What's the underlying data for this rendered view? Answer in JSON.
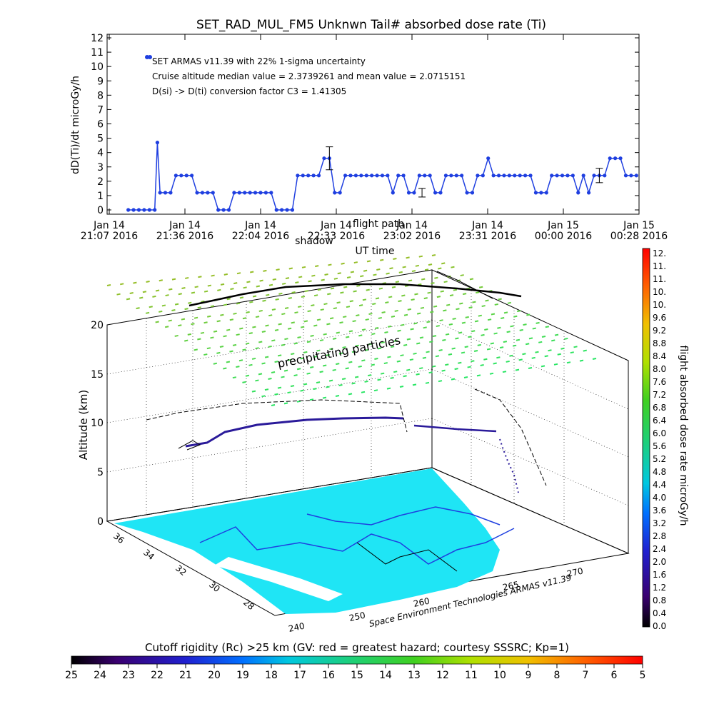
{
  "chart_data": [
    {
      "type": "line",
      "title": "SET_RAD_MUL_FM5 Unknwn Tail#  absorbed dose rate (Ti)",
      "xlabel": "UT time",
      "ylabel": "dD(Ti)/dt microGy/h",
      "ylim": [
        0,
        12
      ],
      "y_ticks": [
        "0",
        "1",
        "2",
        "3",
        "4",
        "5",
        "6",
        "7",
        "8",
        "9",
        "10",
        "11",
        "12"
      ],
      "x_ticks": [
        {
          "top": "Jan 14",
          "bottom": "21:07 2016"
        },
        {
          "top": "Jan 14",
          "bottom": "21:36 2016"
        },
        {
          "top": "Jan 14",
          "bottom": "22:04 2016"
        },
        {
          "top": "Jan 14",
          "bottom": "22:33 2016"
        },
        {
          "top": "Jan 14",
          "bottom": "23:02 2016"
        },
        {
          "top": "Jan 14",
          "bottom": "23:31 2016"
        },
        {
          "top": "Jan 15",
          "bottom": "00:00 2016"
        },
        {
          "top": "Jan 15",
          "bottom": "00:28 2016"
        }
      ],
      "overlay_labels": [
        "shadow",
        "flight path"
      ],
      "annotations": [
        "SET ARMAS v11.39 with 22% 1-sigma uncertainty",
        "Cruise altitude median value = 2.3739261 and mean value = 2.0715151",
        "D(si) -> D(ti) conversion factor C3 = 1.41305"
      ],
      "series_color": "#1f3fe0",
      "x_minutes_range": [
        0,
        201
      ],
      "series": [
        {
          "x": [
            8,
            10,
            12,
            14,
            16,
            18,
            19,
            20,
            22,
            24,
            26,
            28,
            30,
            32,
            34,
            36,
            38,
            40,
            42,
            44,
            46,
            48,
            50,
            52,
            54,
            56,
            58,
            60,
            62,
            64,
            66,
            68,
            70,
            72,
            74,
            76,
            78,
            80,
            82,
            84,
            86,
            88,
            90,
            92,
            94,
            96,
            98,
            100,
            102,
            104,
            106,
            108,
            110,
            112,
            114,
            116,
            118,
            120,
            122,
            124,
            126,
            128,
            130,
            132,
            134,
            136,
            138,
            140,
            142,
            144,
            146,
            148,
            150,
            152,
            154,
            156,
            158,
            160,
            162,
            164,
            166,
            168,
            170,
            172,
            174,
            176,
            178,
            180,
            182,
            184,
            186,
            188,
            190,
            192,
            194,
            196,
            198,
            200
          ],
          "y": [
            0,
            0,
            0,
            0,
            0,
            0,
            4.7,
            1.2,
            1.2,
            1.2,
            2.4,
            2.4,
            2.4,
            2.4,
            1.2,
            1.2,
            1.2,
            1.2,
            0,
            0,
            0,
            1.2,
            1.2,
            1.2,
            1.2,
            1.2,
            1.2,
            1.2,
            1.2,
            0,
            0,
            0,
            0,
            2.4,
            2.4,
            2.4,
            2.4,
            2.4,
            3.6,
            3.6,
            1.2,
            1.2,
            2.4,
            2.4,
            2.4,
            2.4,
            2.4,
            2.4,
            2.4,
            2.4,
            2.4,
            1.2,
            2.4,
            2.4,
            1.2,
            1.2,
            2.4,
            2.4,
            2.4,
            1.2,
            1.2,
            2.4,
            2.4,
            2.4,
            2.4,
            1.2,
            1.2,
            2.4,
            2.4,
            3.6,
            2.4,
            2.4,
            2.4,
            2.4,
            2.4,
            2.4,
            2.4,
            2.4,
            1.2,
            1.2,
            1.2,
            2.4,
            2.4,
            2.4,
            2.4,
            2.4,
            1.2,
            2.4,
            1.2,
            2.4,
            2.4,
            2.4,
            3.6,
            3.6,
            3.6,
            2.4,
            2.4,
            2.4
          ]
        }
      ],
      "error_bars": [
        {
          "x": 84,
          "y": 3.6,
          "low": 2.8,
          "high": 4.4
        },
        {
          "x": 119,
          "y": 1.2,
          "low": 0.9,
          "high": 1.5
        },
        {
          "x": 186,
          "y": 2.4,
          "low": 1.9,
          "high": 2.9
        }
      ]
    },
    {
      "type": "scatter",
      "title": "",
      "xlabel": "",
      "ylabel": "Altitude (km)",
      "z_ticks": [
        "0",
        "5",
        "10",
        "15",
        "20"
      ],
      "lat_ticks": [
        "36",
        "34",
        "32",
        "30",
        "28"
      ],
      "lon_ticks": [
        "240",
        "250",
        "260",
        "265",
        "270"
      ],
      "layer_label": "precipitating particles",
      "credit": "Space Environment Technologies ARMAS v11.39",
      "map_color": "#1fe5f5"
    }
  ],
  "colorbar_right": {
    "label": "flight absorbed dose rate microGy/h",
    "ticks": [
      "12.",
      "11.",
      "11.",
      "10.",
      "10.",
      "9.6",
      "9.2",
      "8.8",
      "8.4",
      "8.0",
      "7.6",
      "7.2",
      "6.8",
      "6.4",
      "6.0",
      "5.6",
      "5.2",
      "4.8",
      "4.4",
      "4.0",
      "3.6",
      "3.2",
      "2.8",
      "2.4",
      "2.0",
      "1.6",
      "1.2",
      "0.8",
      "0.4",
      "0.0"
    ]
  },
  "colorbar_bottom": {
    "title": "Cutoff rigidity (Rc) >25 km (GV: red = greatest hazard; courtesy SSSRC; Kp=1)",
    "ticks": [
      "25",
      "24",
      "23",
      "22",
      "21",
      "20",
      "19",
      "18",
      "17",
      "16",
      "15",
      "14",
      "13",
      "12",
      "11",
      "10",
      "9",
      "8",
      "7",
      "6",
      "5"
    ]
  }
}
